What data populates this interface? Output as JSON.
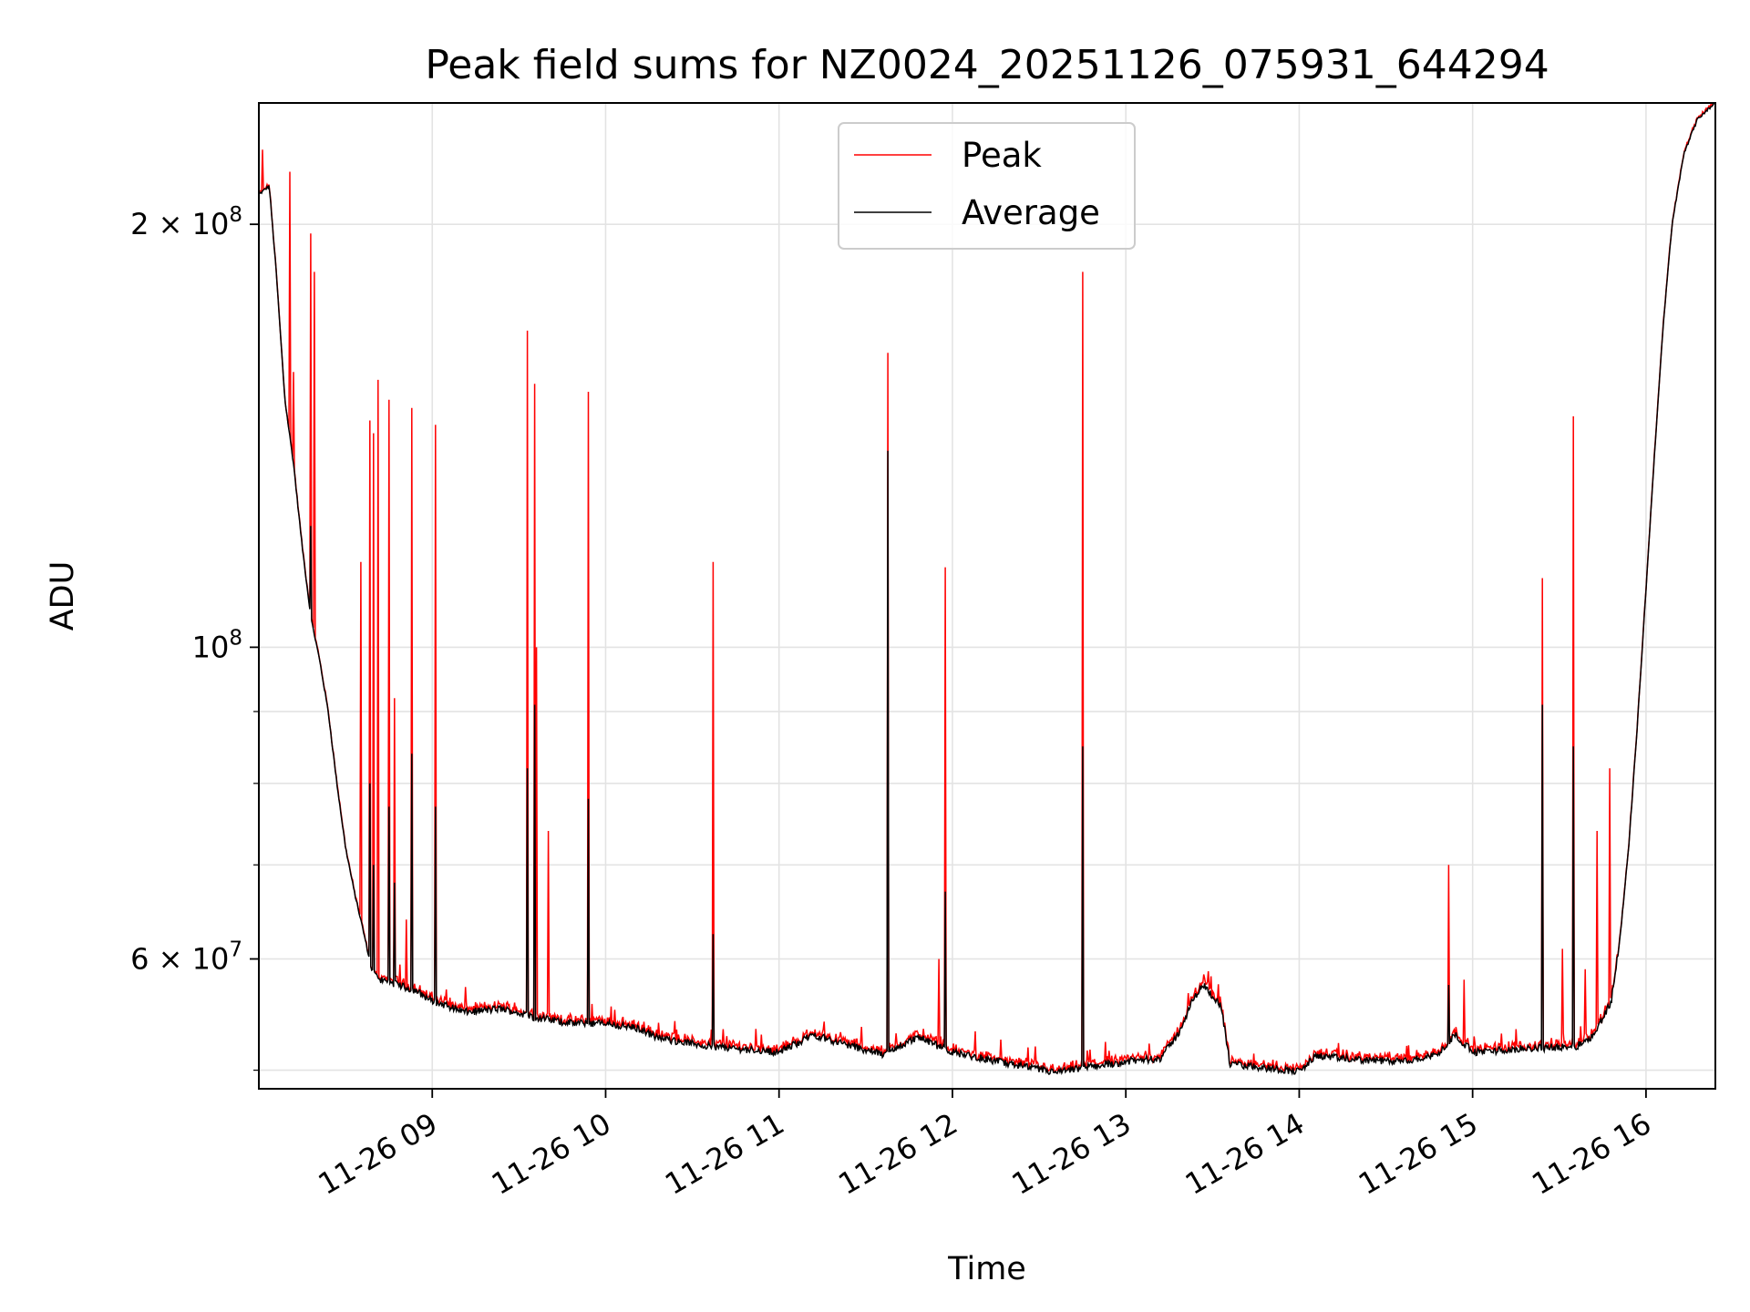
{
  "chart_data": {
    "type": "line",
    "title": "Peak field sums for NZ0024_20251126_075931_644294",
    "xlabel": "Time",
    "ylabel": "ADU",
    "yscale": "log",
    "xlim_hours": [
      8.0,
      16.4
    ],
    "ylim": [
      48500000,
      244000000
    ],
    "grid": true,
    "legend_location": "upper center",
    "x_ticks": [
      {
        "hour": 9,
        "label": "11-26 09"
      },
      {
        "hour": 10,
        "label": "11-26 10"
      },
      {
        "hour": 11,
        "label": "11-26 11"
      },
      {
        "hour": 12,
        "label": "11-26 12"
      },
      {
        "hour": 13,
        "label": "11-26 13"
      },
      {
        "hour": 14,
        "label": "11-26 14"
      },
      {
        "hour": 15,
        "label": "11-26 15"
      },
      {
        "hour": 16,
        "label": "11-26 16"
      }
    ],
    "y_ticks_major": [
      {
        "value": 60000000,
        "base": "6 × 10",
        "exp": "7"
      },
      {
        "value": 100000000,
        "base": "10",
        "exp": "8"
      },
      {
        "value": 200000000,
        "base": "2 × 10",
        "exp": "8"
      }
    ],
    "y_ticks_minor": [
      50000000,
      70000000,
      80000000,
      90000000
    ],
    "series": [
      {
        "name": "Peak",
        "color": "#ff0000"
      },
      {
        "name": "Average",
        "color": "#000000"
      }
    ],
    "baseline_points": [
      [
        8.0,
        210000000
      ],
      [
        8.06,
        213000000
      ],
      [
        8.1,
        185000000
      ],
      [
        8.15,
        150000000
      ],
      [
        8.2,
        135000000
      ],
      [
        8.25,
        118000000
      ],
      [
        8.3,
        105000000
      ],
      [
        8.35,
        98000000
      ],
      [
        8.4,
        90000000
      ],
      [
        8.45,
        80000000
      ],
      [
        8.5,
        72000000
      ],
      [
        8.55,
        67000000
      ],
      [
        8.6,
        63000000
      ],
      [
        8.65,
        59000000
      ],
      [
        8.7,
        58000000
      ],
      [
        8.8,
        57500000
      ],
      [
        8.9,
        57000000
      ],
      [
        9.0,
        56000000
      ],
      [
        9.2,
        55000000
      ],
      [
        9.4,
        55300000
      ],
      [
        9.6,
        54500000
      ],
      [
        9.8,
        54000000
      ],
      [
        10.0,
        54000000
      ],
      [
        10.2,
        53500000
      ],
      [
        10.3,
        52700000
      ],
      [
        10.6,
        52000000
      ],
      [
        11.0,
        51500000
      ],
      [
        11.2,
        53000000
      ],
      [
        11.35,
        52300000
      ],
      [
        11.6,
        51300000
      ],
      [
        11.8,
        52800000
      ],
      [
        12.0,
        51500000
      ],
      [
        12.3,
        50600000
      ],
      [
        12.6,
        49800000
      ],
      [
        12.8,
        50300000
      ],
      [
        13.0,
        50700000
      ],
      [
        13.2,
        51000000
      ],
      [
        13.3,
        53000000
      ],
      [
        13.4,
        56500000
      ],
      [
        13.45,
        57500000
      ],
      [
        13.55,
        55500000
      ],
      [
        13.6,
        50500000
      ],
      [
        13.8,
        50200000
      ],
      [
        14.0,
        49900000
      ],
      [
        14.1,
        51200000
      ],
      [
        14.3,
        50900000
      ],
      [
        14.6,
        50700000
      ],
      [
        14.8,
        51300000
      ],
      [
        14.9,
        53000000
      ],
      [
        15.0,
        51500000
      ],
      [
        15.3,
        51800000
      ],
      [
        15.6,
        52000000
      ],
      [
        15.7,
        53000000
      ],
      [
        15.8,
        56000000
      ],
      [
        15.85,
        62000000
      ],
      [
        15.9,
        72000000
      ],
      [
        15.95,
        88000000
      ],
      [
        16.0,
        110000000
      ],
      [
        16.05,
        138000000
      ],
      [
        16.1,
        170000000
      ],
      [
        16.15,
        200000000
      ],
      [
        16.22,
        225000000
      ],
      [
        16.3,
        238000000
      ],
      [
        16.4,
        244000000
      ]
    ],
    "peak_spikes": [
      [
        8.02,
        226000000
      ],
      [
        8.18,
        218000000
      ],
      [
        8.2,
        157000000
      ],
      [
        8.3,
        197000000
      ],
      [
        8.32,
        185000000
      ],
      [
        8.59,
        115000000
      ],
      [
        8.64,
        145000000
      ],
      [
        8.66,
        142000000
      ],
      [
        8.69,
        155000000
      ],
      [
        8.75,
        150000000
      ],
      [
        8.78,
        92000000
      ],
      [
        8.85,
        64000000
      ],
      [
        8.88,
        148000000
      ],
      [
        9.02,
        144000000
      ],
      [
        9.55,
        168000000
      ],
      [
        9.59,
        154000000
      ],
      [
        9.6,
        100000000
      ],
      [
        9.67,
        74000000
      ],
      [
        9.9,
        152000000
      ],
      [
        10.03,
        55500000
      ],
      [
        10.62,
        115000000
      ],
      [
        10.9,
        53000000
      ],
      [
        11.04,
        52500000
      ],
      [
        11.63,
        162000000
      ],
      [
        11.92,
        60000000
      ],
      [
        11.96,
        114000000
      ],
      [
        12.75,
        185000000
      ],
      [
        13.45,
        58500000
      ],
      [
        14.86,
        70000000
      ],
      [
        14.95,
        58000000
      ],
      [
        15.4,
        112000000
      ],
      [
        15.52,
        61000000
      ],
      [
        15.58,
        146000000
      ],
      [
        15.65,
        59000000
      ],
      [
        15.72,
        74000000
      ],
      [
        15.79,
        82000000
      ]
    ],
    "average_spikes": [
      [
        8.3,
        122000000
      ],
      [
        8.31,
        100000000
      ],
      [
        8.64,
        80000000
      ],
      [
        8.66,
        70000000
      ],
      [
        8.75,
        77000000
      ],
      [
        8.78,
        68000000
      ],
      [
        8.88,
        84000000
      ],
      [
        9.02,
        77000000
      ],
      [
        9.55,
        82000000
      ],
      [
        9.59,
        91000000
      ],
      [
        9.9,
        78000000
      ],
      [
        10.62,
        62500000
      ],
      [
        11.63,
        138000000
      ],
      [
        11.96,
        67000000
      ],
      [
        12.75,
        85000000
      ],
      [
        14.86,
        57500000
      ],
      [
        15.4,
        91000000
      ],
      [
        15.58,
        85000000
      ]
    ]
  }
}
